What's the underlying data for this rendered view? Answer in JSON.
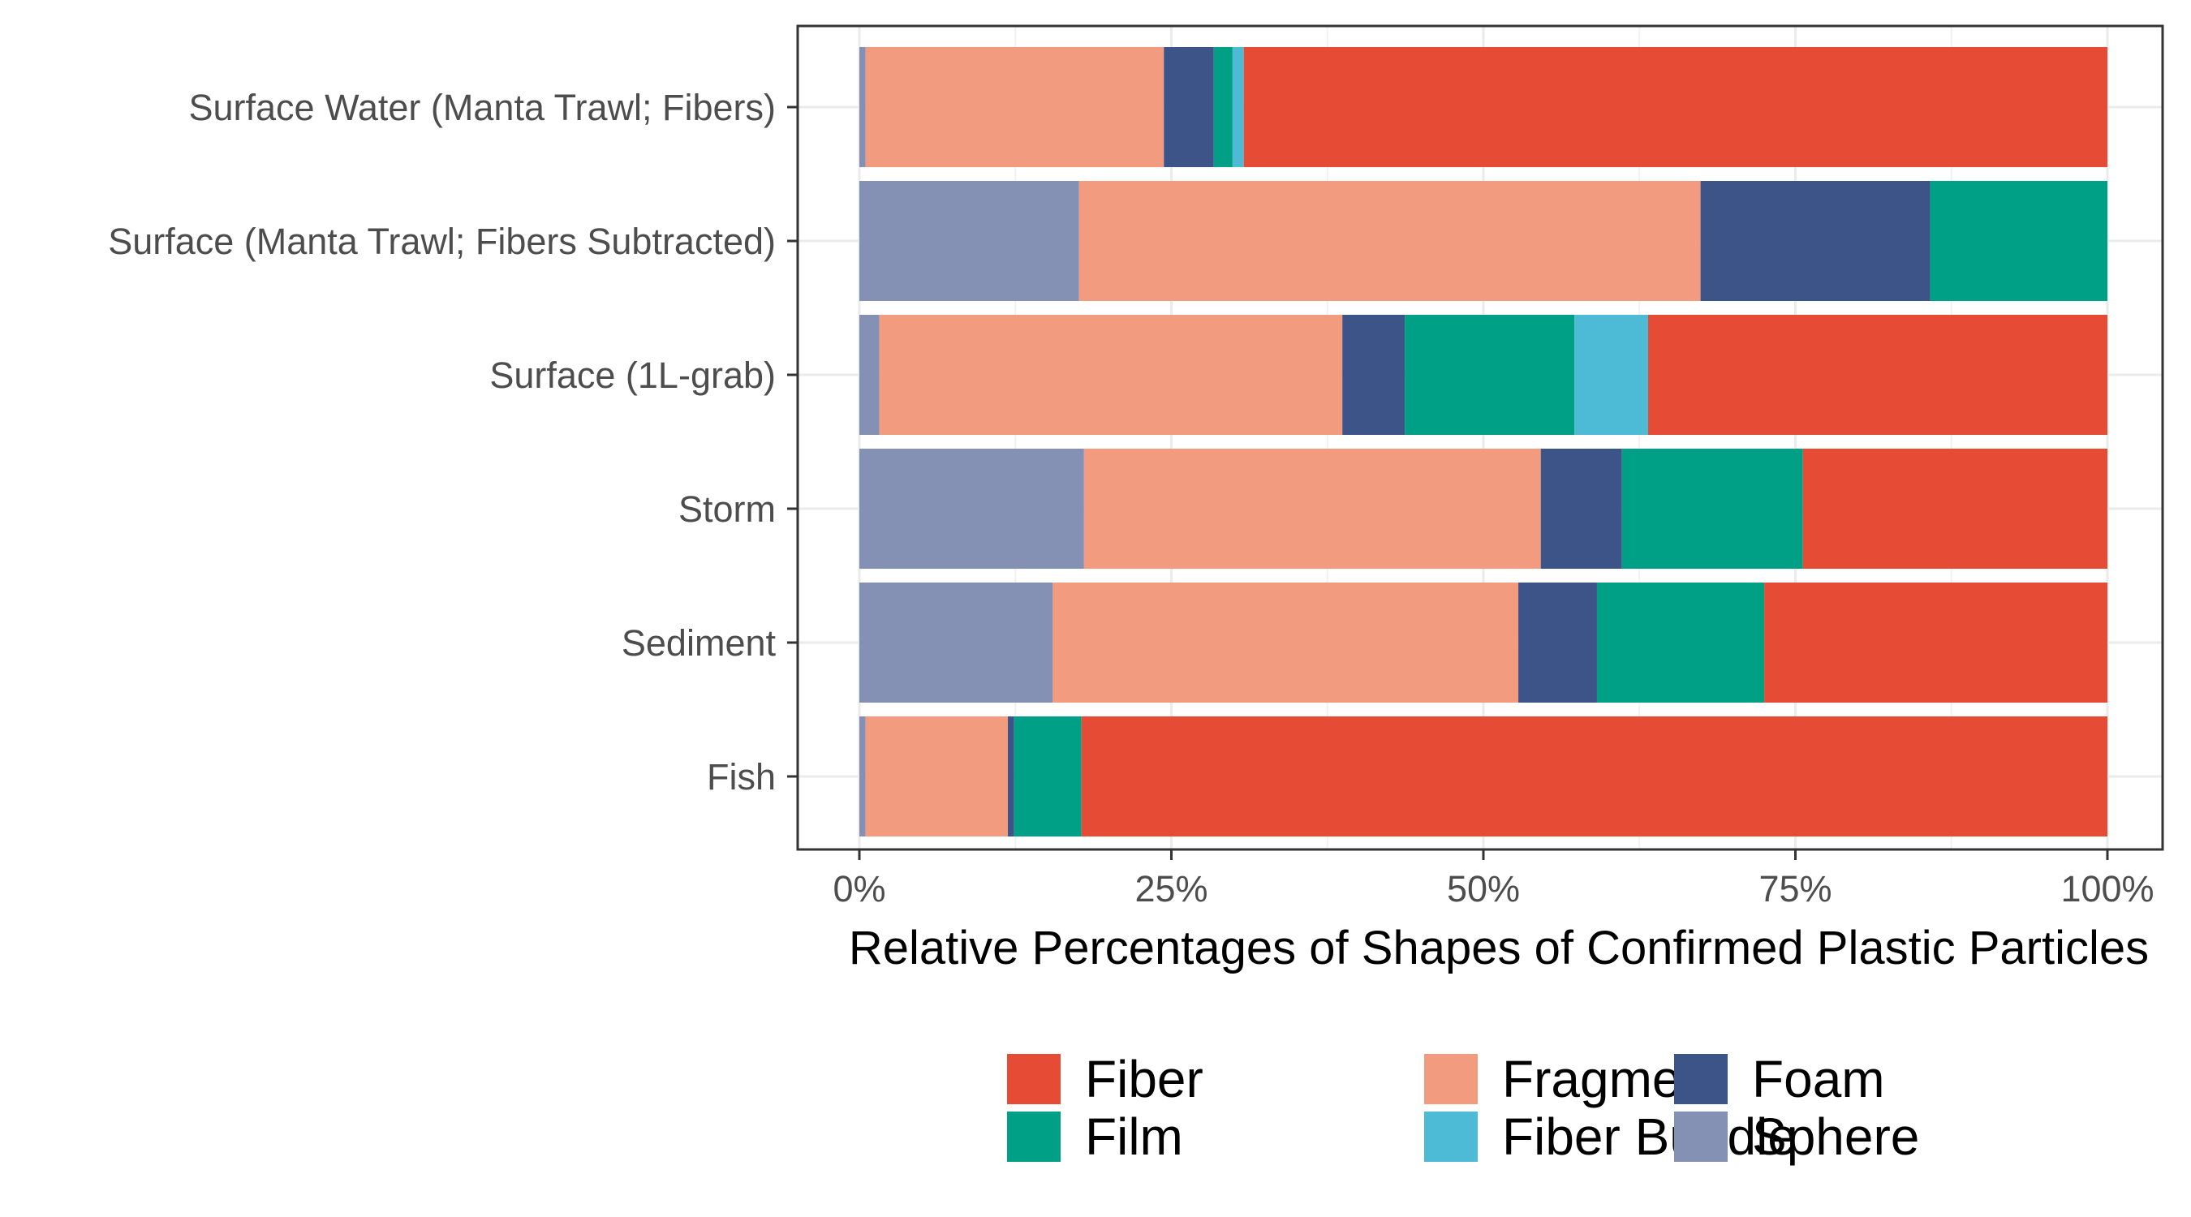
{
  "chart_data": {
    "type": "bar",
    "orientation": "horizontal",
    "stacked": "percent",
    "title": "",
    "xlabel": "Relative Percentages of Shapes of Confirmed Plastic Particles",
    "ylabel": "",
    "xlim": [
      0,
      100
    ],
    "x_ticks": [
      0,
      25,
      50,
      75,
      100
    ],
    "x_tick_labels": [
      "0%",
      "25%",
      "50%",
      "75%",
      "100%"
    ],
    "grid": true,
    "legend_position": "bottom",
    "categories": [
      "Surface Water (Manta Trawl; Fibers)",
      "Surface (Manta Trawl; Fibers Subtracted)",
      "Surface (1L-grab)",
      "Storm",
      "Sediment",
      "Fish"
    ],
    "stack_order": [
      "Sphere",
      "Fragment",
      "Foam",
      "Film",
      "Fiber Bundle",
      "Fiber"
    ],
    "legend_order": [
      "Fiber",
      "Film",
      "Fragment",
      "Fiber Bundle",
      "Foam",
      "Sphere"
    ],
    "colors": {
      "Fiber": "#e64b35",
      "Fiber Bundle": "#4dbbd5",
      "Film": "#00a087",
      "Foam": "#3c5488",
      "Fragment": "#f39b7f",
      "Sphere": "#8491b4"
    },
    "series": [
      {
        "name": "Sphere",
        "values": [
          0.5,
          17.6,
          1.6,
          18.0,
          15.5,
          0.5
        ]
      },
      {
        "name": "Fragment",
        "values": [
          23.9,
          49.8,
          37.1,
          36.6,
          37.3,
          11.4
        ]
      },
      {
        "name": "Foam",
        "values": [
          4.0,
          18.4,
          5.0,
          6.5,
          6.3,
          0.5
        ]
      },
      {
        "name": "Film",
        "values": [
          1.5,
          14.2,
          13.6,
          14.5,
          13.4,
          5.4
        ]
      },
      {
        "name": "Fiber Bundle",
        "values": [
          0.9,
          0.0,
          5.9,
          0.0,
          0.0,
          0.0
        ]
      },
      {
        "name": "Fiber",
        "values": [
          69.2,
          0.0,
          36.8,
          24.4,
          27.5,
          82.2
        ]
      }
    ]
  }
}
